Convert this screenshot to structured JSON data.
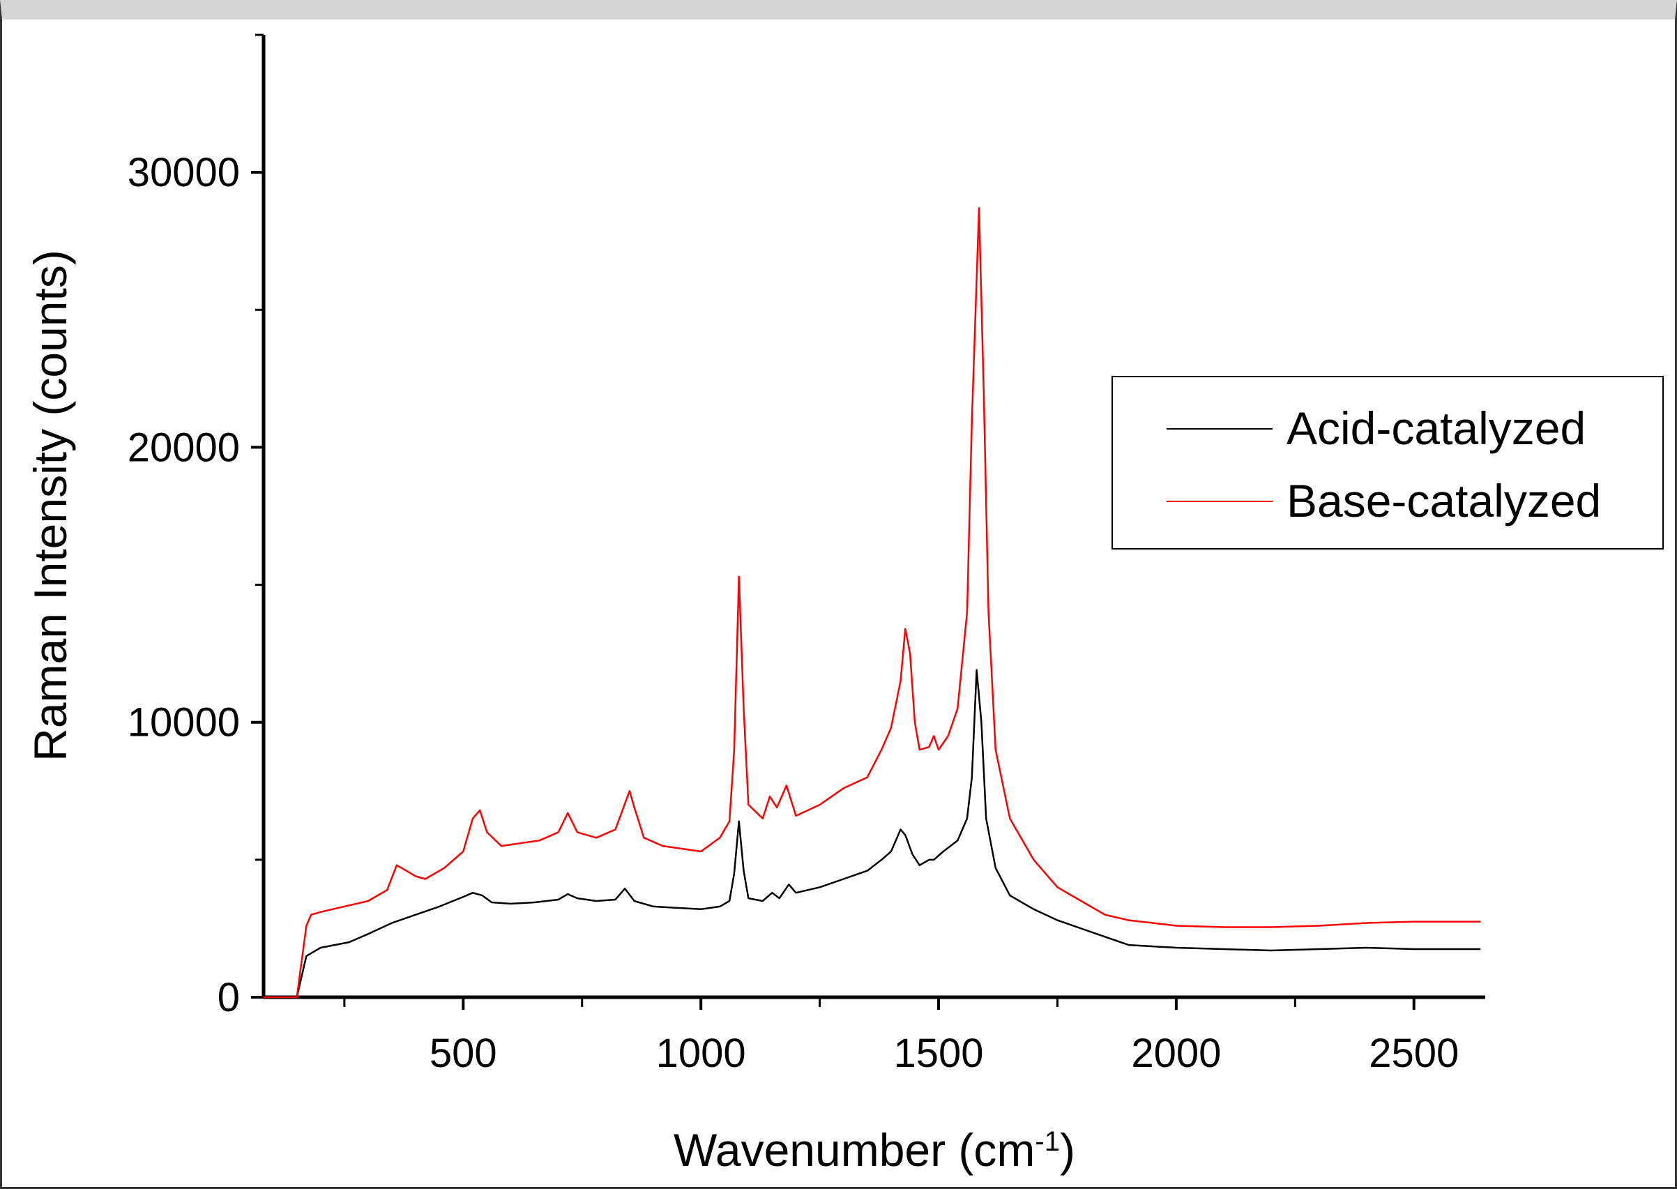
{
  "chart_data": {
    "type": "line",
    "xlabel": "Wavenumber (cm",
    "xlabel_sup": "-1",
    "xlabel_close": ")",
    "ylabel": "Raman Intensity (counts)",
    "xlim": [
      80,
      2650
    ],
    "ylim": [
      0,
      35000
    ],
    "x_major_ticks": [
      500,
      1000,
      1500,
      2000,
      2500
    ],
    "x_tick_labels": [
      "500",
      "1000",
      "1500",
      "2000",
      "2500"
    ],
    "x_minor_ticks": [
      250,
      750,
      1250,
      1750,
      2250
    ],
    "y_major_ticks": [
      0,
      10000,
      20000,
      30000
    ],
    "y_tick_labels": [
      "0",
      "10000",
      "20000",
      "30000"
    ],
    "y_minor_ticks": [
      5000,
      15000,
      25000,
      35000
    ],
    "grid": false,
    "legend_position": "right",
    "series": [
      {
        "name": "Acid-catalyzed",
        "color": "#000000",
        "points": [
          [
            80,
            0
          ],
          [
            150,
            0
          ],
          [
            170,
            1500
          ],
          [
            200,
            1800
          ],
          [
            260,
            2000
          ],
          [
            300,
            2300
          ],
          [
            350,
            2700
          ],
          [
            400,
            3000
          ],
          [
            450,
            3300
          ],
          [
            500,
            3650
          ],
          [
            520,
            3800
          ],
          [
            540,
            3700
          ],
          [
            560,
            3450
          ],
          [
            600,
            3400
          ],
          [
            650,
            3450
          ],
          [
            700,
            3550
          ],
          [
            720,
            3750
          ],
          [
            740,
            3600
          ],
          [
            780,
            3500
          ],
          [
            820,
            3550
          ],
          [
            840,
            3950
          ],
          [
            860,
            3500
          ],
          [
            900,
            3300
          ],
          [
            950,
            3250
          ],
          [
            1000,
            3200
          ],
          [
            1040,
            3300
          ],
          [
            1060,
            3500
          ],
          [
            1070,
            4500
          ],
          [
            1080,
            6400
          ],
          [
            1090,
            4600
          ],
          [
            1100,
            3600
          ],
          [
            1130,
            3500
          ],
          [
            1150,
            3800
          ],
          [
            1165,
            3600
          ],
          [
            1185,
            4100
          ],
          [
            1200,
            3800
          ],
          [
            1250,
            4000
          ],
          [
            1300,
            4300
          ],
          [
            1350,
            4600
          ],
          [
            1380,
            5000
          ],
          [
            1400,
            5300
          ],
          [
            1420,
            6100
          ],
          [
            1430,
            5900
          ],
          [
            1445,
            5200
          ],
          [
            1460,
            4800
          ],
          [
            1480,
            5000
          ],
          [
            1490,
            5000
          ],
          [
            1510,
            5300
          ],
          [
            1540,
            5700
          ],
          [
            1560,
            6500
          ],
          [
            1570,
            8000
          ],
          [
            1580,
            11900
          ],
          [
            1590,
            10000
          ],
          [
            1600,
            6500
          ],
          [
            1620,
            4700
          ],
          [
            1650,
            3700
          ],
          [
            1700,
            3200
          ],
          [
            1750,
            2800
          ],
          [
            1800,
            2500
          ],
          [
            1850,
            2200
          ],
          [
            1900,
            1900
          ],
          [
            2000,
            1800
          ],
          [
            2100,
            1750
          ],
          [
            2200,
            1700
          ],
          [
            2300,
            1750
          ],
          [
            2400,
            1800
          ],
          [
            2500,
            1750
          ],
          [
            2640,
            1750
          ]
        ]
      },
      {
        "name": "Base-catalyzed",
        "color": "#ff0000",
        "points": [
          [
            80,
            0
          ],
          [
            150,
            0
          ],
          [
            170,
            2600
          ],
          [
            180,
            3000
          ],
          [
            200,
            3100
          ],
          [
            300,
            3500
          ],
          [
            340,
            3900
          ],
          [
            360,
            4800
          ],
          [
            380,
            4600
          ],
          [
            400,
            4400
          ],
          [
            420,
            4300
          ],
          [
            460,
            4700
          ],
          [
            500,
            5300
          ],
          [
            520,
            6500
          ],
          [
            535,
            6800
          ],
          [
            550,
            6000
          ],
          [
            580,
            5500
          ],
          [
            620,
            5600
          ],
          [
            660,
            5700
          ],
          [
            700,
            6000
          ],
          [
            720,
            6700
          ],
          [
            740,
            6000
          ],
          [
            780,
            5800
          ],
          [
            820,
            6100
          ],
          [
            850,
            7500
          ],
          [
            860,
            6900
          ],
          [
            880,
            5800
          ],
          [
            920,
            5500
          ],
          [
            1000,
            5300
          ],
          [
            1040,
            5800
          ],
          [
            1060,
            6400
          ],
          [
            1070,
            9000
          ],
          [
            1080,
            15300
          ],
          [
            1090,
            10500
          ],
          [
            1100,
            7000
          ],
          [
            1130,
            6500
          ],
          [
            1145,
            7300
          ],
          [
            1160,
            6900
          ],
          [
            1180,
            7700
          ],
          [
            1200,
            6600
          ],
          [
            1250,
            7000
          ],
          [
            1300,
            7600
          ],
          [
            1350,
            8000
          ],
          [
            1380,
            9000
          ],
          [
            1400,
            9800
          ],
          [
            1420,
            11500
          ],
          [
            1430,
            13400
          ],
          [
            1440,
            12500
          ],
          [
            1450,
            10000
          ],
          [
            1460,
            9000
          ],
          [
            1480,
            9100
          ],
          [
            1490,
            9500
          ],
          [
            1500,
            9000
          ],
          [
            1520,
            9500
          ],
          [
            1540,
            10500
          ],
          [
            1560,
            14000
          ],
          [
            1570,
            21000
          ],
          [
            1585,
            28700
          ],
          [
            1595,
            22000
          ],
          [
            1605,
            14000
          ],
          [
            1620,
            9000
          ],
          [
            1650,
            6500
          ],
          [
            1700,
            5000
          ],
          [
            1750,
            4000
          ],
          [
            1800,
            3500
          ],
          [
            1850,
            3000
          ],
          [
            1900,
            2800
          ],
          [
            1950,
            2700
          ],
          [
            2000,
            2600
          ],
          [
            2100,
            2550
          ],
          [
            2200,
            2550
          ],
          [
            2300,
            2600
          ],
          [
            2400,
            2700
          ],
          [
            2500,
            2750
          ],
          [
            2640,
            2750
          ]
        ]
      }
    ]
  }
}
